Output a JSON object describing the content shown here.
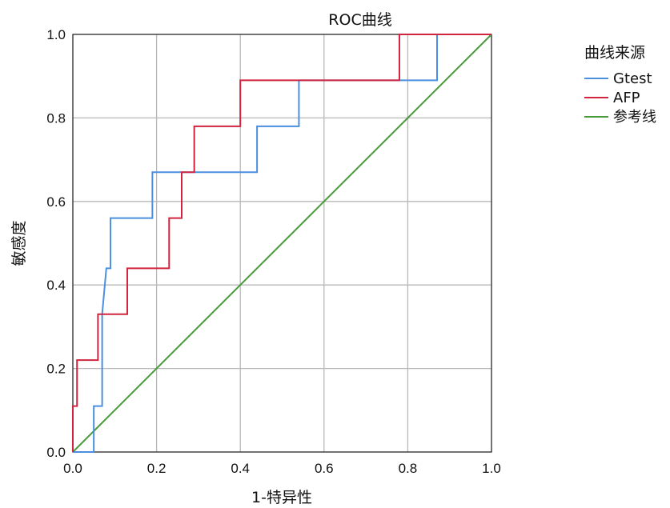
{
  "chart_data": {
    "type": "line",
    "title": "ROC曲线",
    "xlabel": "1-特异性",
    "ylabel": "敏感度",
    "xlim": [
      0,
      1
    ],
    "ylim": [
      0,
      1
    ],
    "x_ticks": [
      "0.0",
      "0.2",
      "0.4",
      "0.6",
      "0.8",
      "1.0"
    ],
    "y_ticks": [
      "0.0",
      "0.2",
      "0.4",
      "0.6",
      "0.8",
      "1.0"
    ],
    "grid": true,
    "legend": {
      "title": "曲线来源",
      "position": "right"
    },
    "series": [
      {
        "name": "Gtest",
        "color": "#4a8fe0",
        "x": [
          0,
          0.05,
          0.05,
          0.07,
          0.07,
          0.08,
          0.08,
          0.09,
          0.09,
          0.19,
          0.19,
          0.44,
          0.44,
          0.54,
          0.54,
          0.87,
          0.87,
          1.0
        ],
        "y": [
          0,
          0,
          0.11,
          0.11,
          0.33,
          0.44,
          0.44,
          0.44,
          0.56,
          0.56,
          0.67,
          0.67,
          0.78,
          0.78,
          0.89,
          0.89,
          1.0,
          1.0
        ]
      },
      {
        "name": "AFP",
        "color": "#d0243f",
        "x": [
          0,
          0,
          0.01,
          0.01,
          0.06,
          0.06,
          0.13,
          0.13,
          0.23,
          0.23,
          0.26,
          0.26,
          0.29,
          0.29,
          0.4,
          0.4,
          0.78,
          0.78,
          1.0
        ],
        "y": [
          0,
          0.11,
          0.11,
          0.22,
          0.22,
          0.33,
          0.33,
          0.44,
          0.44,
          0.56,
          0.56,
          0.67,
          0.67,
          0.78,
          0.78,
          0.89,
          0.89,
          1.0,
          1.0
        ]
      },
      {
        "name": "参考线",
        "color": "#4a9a3c",
        "x": [
          0,
          1
        ],
        "y": [
          0,
          1
        ]
      }
    ]
  }
}
